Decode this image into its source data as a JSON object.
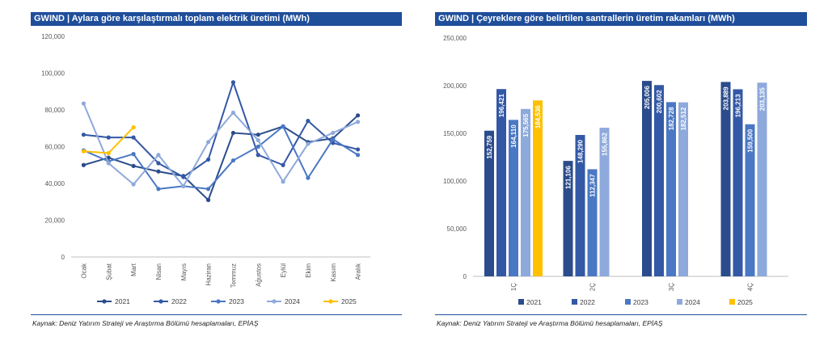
{
  "left_chart": {
    "title": "GWIND | Aylara göre karşılaştırmalı toplam elektrik üretimi (MWh)",
    "source": "Kaynak: Deniz Yatırım Strateji ve Araştırma Bölümü hesaplamaları, EPİAŞ"
  },
  "right_chart": {
    "title": "GWIND | Çeyreklere göre belirtilen santrallerin üretim rakamları (MWh)",
    "source": "Kaynak: Deniz Yatırım Strateji ve Araştırma Bölümü hesaplamaları, EPİAŞ"
  },
  "colors": {
    "title_bar": "#1f4e9b",
    "axis": "#bfbfbf",
    "tick_text": "#595959",
    "bar_label": "#ffffff"
  },
  "chart_data": [
    {
      "type": "line",
      "title": "GWIND | Aylara göre karşılaştırmalı toplam elektrik üretimi (MWh)",
      "categories": [
        "Ocak",
        "Şubat",
        "Mart",
        "Nisan",
        "Mayıs",
        "Haziran",
        "Temmuz",
        "Ağustos",
        "Eylül",
        "Ekim",
        "Kasım",
        "Aralık"
      ],
      "ylim": [
        0,
        120000
      ],
      "yticks": [
        0,
        20000,
        40000,
        60000,
        80000,
        100000,
        120000
      ],
      "ytick_labels": [
        "0",
        "20,000",
        "40,000",
        "60,000",
        "80,000",
        "100,000",
        "120,000"
      ],
      "legend_position": "bottom",
      "series": [
        {
          "name": "2021",
          "color": "#2b4c8c",
          "values": [
            50000,
            54000,
            49500,
            46500,
            44000,
            31000,
            67500,
            66500,
            71000,
            62500,
            64500,
            77000
          ]
        },
        {
          "name": "2022",
          "color": "#3358a6",
          "values": [
            66500,
            65000,
            65000,
            51000,
            43500,
            53000,
            95000,
            55500,
            50000,
            74000,
            62000,
            58500
          ]
        },
        {
          "name": "2023",
          "color": "#4a78c4",
          "values": [
            58000,
            52000,
            56000,
            37000,
            38500,
            37000,
            52500,
            60000,
            71000,
            43000,
            64000,
            55500
          ]
        },
        {
          "name": "2024",
          "color": "#8ea9db",
          "values": [
            83500,
            51000,
            39500,
            55500,
            38500,
            62500,
            78500,
            63500,
            41000,
            61500,
            67500,
            73500
          ]
        },
        {
          "name": "2025",
          "color": "#ffc000",
          "values": [
            57500,
            56500,
            70500,
            null,
            null,
            null,
            null,
            null,
            null,
            null,
            null,
            null
          ]
        }
      ]
    },
    {
      "type": "bar",
      "title": "GWIND | Çeyreklere göre belirtilen santrallerin üretim rakamları (MWh)",
      "categories": [
        "1Ç",
        "2Ç",
        "3Ç",
        "4Ç"
      ],
      "ylim": [
        0,
        250000
      ],
      "yticks": [
        0,
        50000,
        100000,
        150000,
        200000,
        250000
      ],
      "ytick_labels": [
        "0",
        "50,000",
        "100,000",
        "150,000",
        "200,000",
        "250,000"
      ],
      "legend_position": "bottom",
      "series": [
        {
          "name": "2021",
          "color": "#2b4c8c",
          "values": [
            152759,
            121106,
            205006,
            203889
          ],
          "labels": [
            "152,759",
            "121,106",
            "205,006",
            "203,889"
          ]
        },
        {
          "name": "2022",
          "color": "#3358a6",
          "values": [
            196421,
            148290,
            200602,
            196213
          ],
          "labels": [
            "196,421",
            "148,290",
            "200,602",
            "196,213"
          ]
        },
        {
          "name": "2023",
          "color": "#4a78c4",
          "values": [
            164110,
            112347,
            182728,
            159500
          ],
          "labels": [
            "164,110",
            "112,347",
            "182,728",
            "159,500"
          ]
        },
        {
          "name": "2024",
          "color": "#8ea9db",
          "values": [
            175565,
            155862,
            182512,
            203135
          ],
          "labels": [
            "175,565",
            "155,862",
            "182,512",
            "203,135"
          ]
        },
        {
          "name": "2025",
          "color": "#ffc000",
          "values": [
            184536,
            null,
            null,
            null
          ],
          "labels": [
            "184,536",
            null,
            null,
            null
          ]
        }
      ]
    }
  ]
}
